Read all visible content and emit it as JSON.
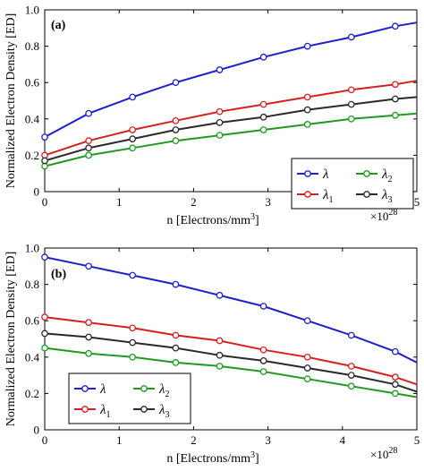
{
  "chart_data": [
    {
      "type": "line",
      "panel_label": "(a)",
      "xlabel": "n [Electrons/mm",
      "xlabel_sup": "3",
      "xlabel_end": "]",
      "ylabel": "Normalized Electron Density [ED]",
      "x_multiplier": "×10",
      "x_multiplier_exp": "28",
      "xlim": [
        0,
        5
      ],
      "ylim": [
        0,
        1
      ],
      "x_ticks": [
        "0",
        "1",
        "2",
        "3",
        "4",
        "5"
      ],
      "y_ticks": [
        "0",
        "0.2",
        "0.4",
        "0.6",
        "0.8",
        "1.0"
      ],
      "grid": false,
      "legend_position": "lower-right",
      "x": [
        0,
        0.59,
        1.18,
        1.76,
        2.35,
        2.94,
        3.53,
        4.12,
        4.71
      ],
      "series": [
        {
          "name": "λ",
          "sub": "",
          "color": "#1f1fcc",
          "values": [
            0.3,
            0.43,
            0.52,
            0.6,
            0.67,
            0.74,
            0.8,
            0.85,
            0.91
          ],
          "end": 0.93
        },
        {
          "name": "λ",
          "sub": "1",
          "color": "#d42020",
          "values": [
            0.2,
            0.28,
            0.34,
            0.39,
            0.44,
            0.48,
            0.52,
            0.56,
            0.59
          ],
          "end": 0.61
        },
        {
          "name": "λ",
          "sub": "2",
          "color": "#1e9a1e",
          "values": [
            0.14,
            0.2,
            0.24,
            0.28,
            0.31,
            0.34,
            0.37,
            0.4,
            0.42
          ],
          "end": 0.43
        },
        {
          "name": "λ",
          "sub": "3",
          "color": "#2a2a2a",
          "values": [
            0.17,
            0.24,
            0.29,
            0.34,
            0.38,
            0.41,
            0.45,
            0.48,
            0.51
          ],
          "end": 0.52
        }
      ]
    },
    {
      "type": "line",
      "panel_label": "(b)",
      "xlabel": "n [Electrons/mm",
      "xlabel_sup": "3",
      "xlabel_end": "]",
      "ylabel": "Normalized Electron Density [ED]",
      "x_multiplier": "×10",
      "x_multiplier_exp": "28",
      "xlim": [
        0,
        5
      ],
      "ylim": [
        0,
        1
      ],
      "x_ticks": [
        "0",
        "1",
        "2",
        "3",
        "4",
        "5"
      ],
      "y_ticks": [
        "0",
        "0.2",
        "0.4",
        "0.6",
        "0.8",
        "1.0"
      ],
      "grid": false,
      "legend_position": "lower-left",
      "x": [
        0,
        0.59,
        1.18,
        1.76,
        2.35,
        2.94,
        3.53,
        4.12,
        4.71
      ],
      "series": [
        {
          "name": "λ",
          "sub": "",
          "color": "#1f1fcc",
          "values": [
            0.95,
            0.9,
            0.85,
            0.8,
            0.74,
            0.68,
            0.6,
            0.52,
            0.43
          ],
          "end": 0.37
        },
        {
          "name": "λ",
          "sub": "1",
          "color": "#d42020",
          "values": [
            0.62,
            0.59,
            0.56,
            0.52,
            0.49,
            0.44,
            0.4,
            0.35,
            0.29
          ],
          "end": 0.25
        },
        {
          "name": "λ",
          "sub": "2",
          "color": "#1e9a1e",
          "values": [
            0.45,
            0.42,
            0.4,
            0.37,
            0.35,
            0.32,
            0.28,
            0.24,
            0.2
          ],
          "end": 0.18
        },
        {
          "name": "λ",
          "sub": "3",
          "color": "#2a2a2a",
          "values": [
            0.53,
            0.51,
            0.48,
            0.45,
            0.41,
            0.38,
            0.34,
            0.3,
            0.25
          ],
          "end": 0.21
        }
      ]
    }
  ]
}
